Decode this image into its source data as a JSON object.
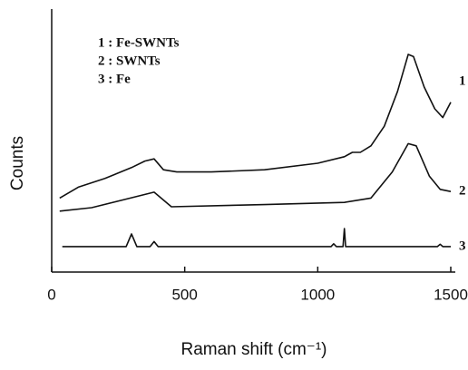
{
  "chart_data": {
    "type": "line",
    "xlabel": "Raman shift (cm⁻¹)",
    "ylabel": "Counts",
    "xlim": [
      0,
      1500
    ],
    "xticks": [
      0,
      500,
      1000,
      1500
    ],
    "ylim": [
      0,
      100
    ],
    "series": [
      {
        "name": "1 : Fe-SWNTs",
        "end_label": "1",
        "color": "#111111",
        "x": [
          30,
          100,
          200,
          300,
          350,
          385,
          420,
          470,
          600,
          800,
          1000,
          1100,
          1130,
          1160,
          1200,
          1250,
          1300,
          1340,
          1360,
          1400,
          1440,
          1470,
          1500
        ],
        "values": [
          34,
          39,
          43,
          48,
          51,
          52,
          47,
          46,
          46,
          47,
          50,
          53,
          55,
          55,
          58,
          67,
          83,
          100,
          99,
          85,
          75,
          71,
          78
        ]
      },
      {
        "name": "2 : SWNTs",
        "end_label": "2",
        "color": "#111111",
        "x": [
          30,
          150,
          385,
          450,
          800,
          1100,
          1200,
          1280,
          1340,
          1370,
          1420,
          1460,
          1500
        ],
        "values": [
          28,
          29.6,
          36.7,
          30,
          31,
          32,
          34,
          46,
          59,
          58,
          44,
          38,
          37
        ]
      },
      {
        "name": "3 : Fe",
        "end_label": "3",
        "color": "#111111",
        "x": [
          40,
          200,
          280,
          300,
          320,
          370,
          385,
          400,
          600,
          900,
          1050,
          1060,
          1070,
          1095,
          1100,
          1105,
          1120,
          1300,
          1450,
          1460,
          1470,
          1500
        ],
        "values": [
          11.7,
          11.7,
          11.7,
          17.5,
          11.7,
          11.7,
          14,
          11.7,
          11.7,
          11.7,
          11.7,
          13,
          11.7,
          11.7,
          20,
          11.7,
          11.7,
          11.7,
          11.7,
          12.8,
          11.7,
          11.7
        ]
      }
    ]
  }
}
